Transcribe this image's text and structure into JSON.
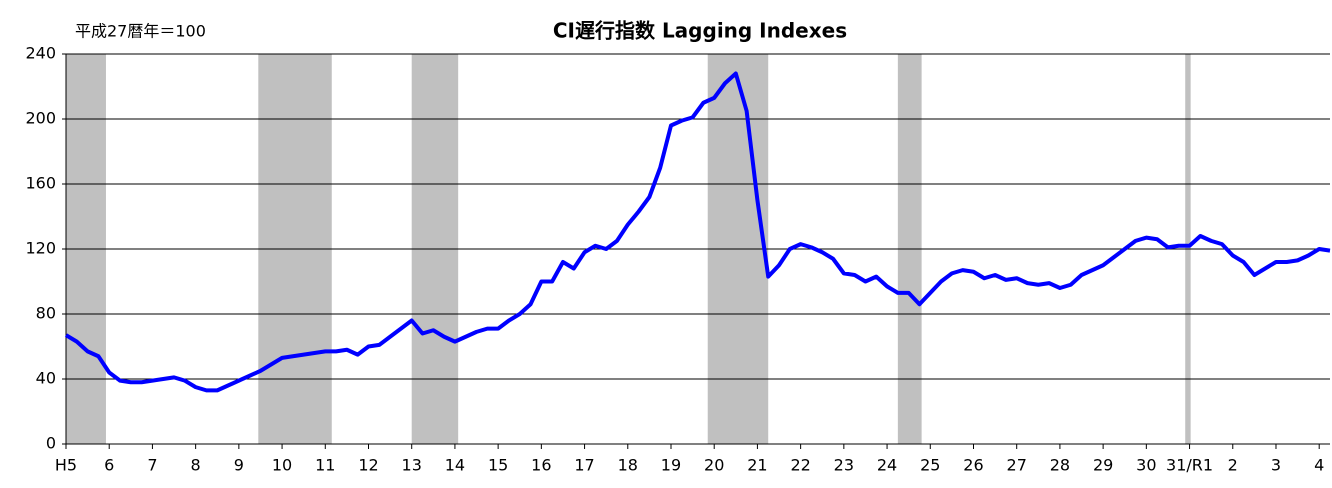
{
  "chart_data": {
    "type": "line",
    "title": "CI遅行指数 Lagging Indexes",
    "subtitle": "平成27暦年＝100",
    "categories": [
      "H5",
      null,
      null,
      null,
      "6",
      null,
      null,
      null,
      "7",
      null,
      null,
      null,
      "8",
      null,
      null,
      null,
      "9",
      null,
      null,
      null,
      "10",
      null,
      null,
      null,
      "11",
      null,
      null,
      null,
      "12",
      null,
      null,
      null,
      "13",
      null,
      null,
      null,
      "14",
      null,
      null,
      null,
      "15",
      null,
      null,
      null,
      "16",
      null,
      null,
      null,
      "17",
      null,
      null,
      null,
      "18",
      null,
      null,
      null,
      "19",
      null,
      null,
      null,
      "20",
      null,
      null,
      null,
      "21",
      null,
      null,
      null,
      "22",
      null,
      null,
      null,
      "23",
      null,
      null,
      null,
      "24",
      null,
      null,
      null,
      "25",
      null,
      null,
      null,
      "26",
      null,
      null,
      null,
      "27",
      null,
      null,
      null,
      "28",
      null,
      null,
      null,
      "29",
      null,
      null,
      null,
      "30",
      null,
      null,
      null,
      "31/R1",
      null,
      null,
      null,
      "2",
      null,
      null,
      null,
      "3",
      null,
      null,
      null,
      "4",
      null
    ],
    "series": [
      {
        "color": "#0000ff",
        "values": [
          67,
          63,
          57,
          54,
          44,
          39,
          38,
          38,
          39,
          40,
          41,
          39,
          35,
          33,
          33,
          36,
          39,
          42,
          45,
          49,
          53,
          54,
          55,
          56,
          57,
          57,
          58,
          55,
          60,
          61,
          66,
          71,
          76,
          68,
          70,
          66,
          63,
          66,
          69,
          71,
          71,
          76,
          80,
          86,
          100,
          100,
          112,
          108,
          118,
          122,
          120,
          125,
          135,
          143,
          152,
          170,
          196,
          199,
          201,
          210,
          213,
          222,
          228,
          205,
          150,
          103,
          110,
          120,
          123,
          121,
          118,
          114,
          105,
          104,
          100,
          103,
          97,
          93,
          93,
          86,
          93,
          100,
          105,
          107,
          106,
          102,
          104,
          101,
          102,
          99,
          98,
          99,
          96,
          98,
          104,
          107,
          110,
          115,
          120,
          125,
          127,
          126,
          121,
          122,
          122,
          128,
          125,
          123,
          116,
          112,
          104,
          108,
          112,
          112,
          113,
          116,
          120,
          119
        ]
      }
    ],
    "shaded_ranges": [
      [
        0,
        3.7
      ],
      [
        17.8,
        24.6
      ],
      [
        32,
        36.3
      ],
      [
        59.4,
        65
      ],
      [
        77,
        79.2
      ],
      [
        103.6,
        104.1
      ]
    ],
    "shade_color": "#c0c0c0",
    "ylim": [
      0,
      240
    ],
    "yticks": [
      0,
      40,
      80,
      120,
      160,
      200,
      240
    ],
    "grid": true
  }
}
